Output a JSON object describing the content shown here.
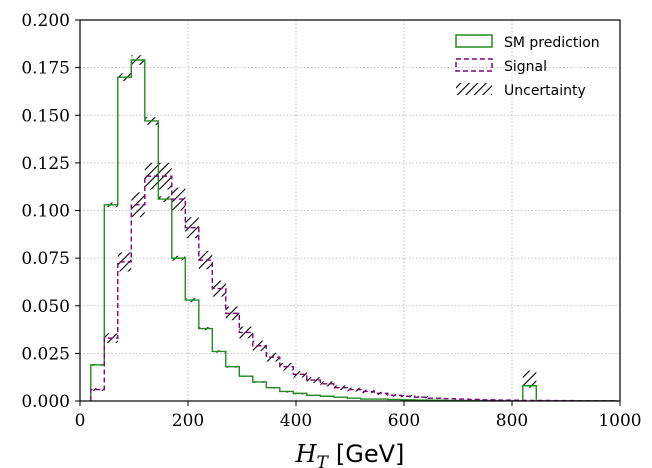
{
  "chart_data": {
    "type": "histogram-step",
    "xlabel": {
      "symbol": "H",
      "subscript": "T",
      "unit": "[GeV]"
    },
    "xlim": [
      0,
      1000
    ],
    "ylim": [
      0,
      0.2
    ],
    "xticks": [
      "0",
      "200",
      "400",
      "600",
      "800",
      "1000"
    ],
    "yticks": [
      "0.000",
      "0.025",
      "0.050",
      "0.075",
      "0.100",
      "0.125",
      "0.150",
      "0.175",
      "0.200"
    ],
    "grid": true,
    "legend_position": "top-right",
    "bin_edges": [
      20,
      45,
      70,
      95,
      120,
      145,
      170,
      195,
      220,
      245,
      270,
      295,
      320,
      345,
      370,
      395,
      420,
      445,
      470,
      495,
      520,
      545,
      570,
      595,
      620,
      645,
      670,
      695,
      720,
      745,
      770,
      795,
      820,
      845,
      870,
      895,
      920,
      945,
      970,
      995
    ],
    "series": [
      {
        "name": "SM prediction",
        "color": "#228B22",
        "style": "solid",
        "values": [
          0.019,
          0.103,
          0.17,
          0.179,
          0.147,
          0.106,
          0.075,
          0.053,
          0.038,
          0.026,
          0.018,
          0.013,
          0.01,
          0.007,
          0.005,
          0.004,
          0.003,
          0.0025,
          0.002,
          0.0015,
          0.001,
          0.001,
          0.0008,
          0.0006,
          0.0005,
          0.0004,
          0.0003,
          0.0003,
          0.0002,
          0.0002,
          0.0001,
          0.0001,
          0.008,
          0.0001,
          0.0001,
          0.0001,
          0.0001,
          0.0001,
          0.0001
        ]
      },
      {
        "name": "Signal",
        "color": "#800080",
        "style": "dashed",
        "values": [
          0.006,
          0.033,
          0.073,
          0.103,
          0.118,
          0.118,
          0.106,
          0.091,
          0.074,
          0.059,
          0.046,
          0.036,
          0.029,
          0.023,
          0.018,
          0.014,
          0.011,
          0.009,
          0.007,
          0.006,
          0.005,
          0.004,
          0.003,
          0.0025,
          0.002,
          0.0015,
          0.0012,
          0.001,
          0.0008,
          0.0006,
          0.0005,
          0.0004,
          0.0003,
          0.0003,
          0.0002,
          0.0002,
          0.0001,
          0.0001,
          0.0001
        ]
      }
    ],
    "uncertainty": {
      "name": "Uncertainty",
      "sm_half_width": [
        0.0005,
        0.0012,
        0.002,
        0.0025,
        0.002,
        0.0015,
        0.0012,
        0.001,
        0.0008,
        0.0006,
        0.0005,
        0.0004,
        0.0003,
        0.0003,
        0.0002,
        0.0002
      ],
      "signal_half_width": [
        0.0007,
        0.0025,
        0.005,
        0.0065,
        0.007,
        0.007,
        0.006,
        0.0055,
        0.0048,
        0.0042,
        0.0036,
        0.0031,
        0.0027,
        0.0023,
        0.002,
        0.0017,
        0.0015,
        0.0013,
        0.0012,
        0.001,
        0.0009,
        0.0008,
        0.0007,
        0.0006,
        0.0005
      ],
      "extra_bin": {
        "x0": 820,
        "x1": 845,
        "low": 0.007,
        "high": 0.016
      }
    },
    "legend": [
      "SM prediction",
      "Signal",
      "Uncertainty"
    ]
  }
}
